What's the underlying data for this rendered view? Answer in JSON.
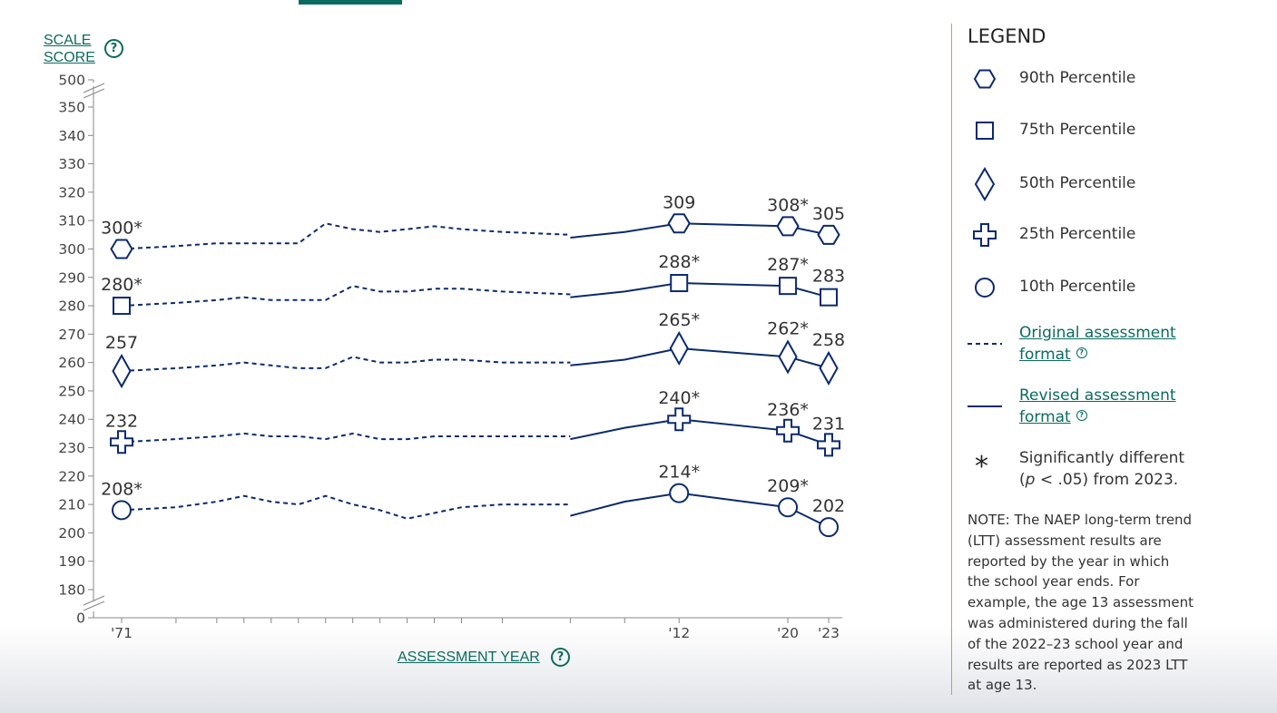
{
  "y_axis_title": {
    "line1": "SCALE",
    "line2": "SCORE",
    "help": "?"
  },
  "x_axis_title": {
    "text": "ASSESSMENT YEAR",
    "help": "?"
  },
  "legend": {
    "title": "LEGEND",
    "items": [
      {
        "symbol": "hexagon",
        "label": "90th Percentile"
      },
      {
        "symbol": "square",
        "label": "75th Percentile"
      },
      {
        "symbol": "diamond",
        "label": "50th Percentile"
      },
      {
        "symbol": "plus",
        "label": "25th Percentile"
      },
      {
        "symbol": "circle",
        "label": "10th Percentile"
      }
    ],
    "original_format": {
      "line1": "Original assessment",
      "line2": "format",
      "help": "?"
    },
    "revised_format": {
      "line1": "Revised assessment",
      "line2": "format",
      "help": "?"
    },
    "significance": {
      "symbol": "*",
      "line1": "Significantly different",
      "line2_p": "p",
      "line2_rest": " < .05) from 2023.",
      "line2_open": "("
    }
  },
  "note": "NOTE: The NAEP long-term trend (LTT) assessment results are reported by the year in which the school year ends. For example, the age 13 assessment was administered during the fall of the 2022–23 school year and results are reported as 2023 LTT at age 13.",
  "colors": {
    "line": "#0b2a6e",
    "accent": "#0b6b5f",
    "divider": "#c9a33a",
    "axis": "#888888"
  },
  "chart_data": {
    "type": "line",
    "xlabel": "ASSESSMENT YEAR",
    "ylabel": "SCALE SCORE",
    "x_ticks": [
      1971,
      1975,
      1978,
      1980,
      1982,
      1984,
      1986,
      1988,
      1990,
      1992,
      1994,
      1996,
      1999,
      2004,
      2008,
      2012,
      2020,
      2023
    ],
    "x_tick_labels": {
      "1971": "'71",
      "2012": "'12",
      "2020": "'20",
      "2023": "'23"
    },
    "y_ticks": [
      0,
      180,
      190,
      200,
      210,
      220,
      230,
      240,
      250,
      260,
      270,
      280,
      290,
      300,
      310,
      320,
      330,
      340,
      350,
      500
    ],
    "y_axis_breaks": [
      "0-180",
      "350-500"
    ],
    "ylim": [
      180,
      350
    ],
    "series": [
      {
        "name": "90th Percentile",
        "marker": "hexagon",
        "original": {
          "x": [
            1971,
            1975,
            1978,
            1980,
            1982,
            1984,
            1986,
            1988,
            1990,
            1992,
            1994,
            1996,
            1999,
            2004
          ],
          "y": [
            300,
            301,
            302,
            302,
            302,
            302,
            309,
            307,
            306,
            307,
            308,
            307,
            306,
            305
          ]
        },
        "revised": {
          "x": [
            2004,
            2008,
            2012,
            2020,
            2023
          ],
          "y": [
            304,
            306,
            309,
            308,
            305
          ]
        },
        "markers": [
          {
            "x": 1971,
            "y": 300,
            "label": "300*"
          },
          {
            "x": 2012,
            "y": 309,
            "label": "309"
          },
          {
            "x": 2020,
            "y": 308,
            "label": "308*"
          },
          {
            "x": 2023,
            "y": 305,
            "label": "305"
          }
        ]
      },
      {
        "name": "75th Percentile",
        "marker": "square",
        "original": {
          "x": [
            1971,
            1975,
            1978,
            1980,
            1982,
            1984,
            1986,
            1988,
            1990,
            1992,
            1994,
            1996,
            1999,
            2004
          ],
          "y": [
            280,
            281,
            282,
            283,
            282,
            282,
            282,
            287,
            285,
            285,
            286,
            286,
            285,
            284
          ]
        },
        "revised": {
          "x": [
            2004,
            2008,
            2012,
            2020,
            2023
          ],
          "y": [
            283,
            285,
            288,
            287,
            283
          ]
        },
        "markers": [
          {
            "x": 1971,
            "y": 280,
            "label": "280*"
          },
          {
            "x": 2012,
            "y": 288,
            "label": "288*"
          },
          {
            "x": 2020,
            "y": 287,
            "label": "287*"
          },
          {
            "x": 2023,
            "y": 283,
            "label": "283"
          }
        ]
      },
      {
        "name": "50th Percentile",
        "marker": "diamond",
        "original": {
          "x": [
            1971,
            1975,
            1978,
            1980,
            1982,
            1984,
            1986,
            1988,
            1990,
            1992,
            1994,
            1996,
            1999,
            2004
          ],
          "y": [
            257,
            258,
            259,
            260,
            259,
            258,
            258,
            262,
            260,
            260,
            261,
            261,
            260,
            260
          ]
        },
        "revised": {
          "x": [
            2004,
            2008,
            2012,
            2020,
            2023
          ],
          "y": [
            259,
            261,
            265,
            262,
            258
          ]
        },
        "markers": [
          {
            "x": 1971,
            "y": 257,
            "label": "257"
          },
          {
            "x": 2012,
            "y": 265,
            "label": "265*"
          },
          {
            "x": 2020,
            "y": 262,
            "label": "262*"
          },
          {
            "x": 2023,
            "y": 258,
            "label": "258"
          }
        ]
      },
      {
        "name": "25th Percentile",
        "marker": "plus",
        "original": {
          "x": [
            1971,
            1975,
            1978,
            1980,
            1982,
            1984,
            1986,
            1988,
            1990,
            1992,
            1994,
            1996,
            1999,
            2004
          ],
          "y": [
            232,
            233,
            234,
            235,
            234,
            234,
            233,
            235,
            233,
            233,
            234,
            234,
            234,
            234
          ]
        },
        "revised": {
          "x": [
            2004,
            2008,
            2012,
            2020,
            2023
          ],
          "y": [
            233,
            237,
            240,
            236,
            231
          ]
        },
        "markers": [
          {
            "x": 1971,
            "y": 232,
            "label": "232"
          },
          {
            "x": 2012,
            "y": 240,
            "label": "240*"
          },
          {
            "x": 2020,
            "y": 236,
            "label": "236*"
          },
          {
            "x": 2023,
            "y": 231,
            "label": "231"
          }
        ]
      },
      {
        "name": "10th Percentile",
        "marker": "circle",
        "original": {
          "x": [
            1971,
            1975,
            1978,
            1980,
            1982,
            1984,
            1986,
            1988,
            1990,
            1992,
            1994,
            1996,
            1999,
            2004
          ],
          "y": [
            208,
            209,
            211,
            213,
            211,
            210,
            213,
            210,
            208,
            205,
            207,
            209,
            210,
            210
          ]
        },
        "revised": {
          "x": [
            2004,
            2008,
            2012,
            2020,
            2023
          ],
          "y": [
            206,
            211,
            214,
            209,
            202
          ]
        },
        "markers": [
          {
            "x": 1971,
            "y": 208,
            "label": "208*"
          },
          {
            "x": 2012,
            "y": 214,
            "label": "214*"
          },
          {
            "x": 2020,
            "y": 209,
            "label": "209*"
          },
          {
            "x": 2023,
            "y": 202,
            "label": "202"
          }
        ]
      }
    ]
  }
}
